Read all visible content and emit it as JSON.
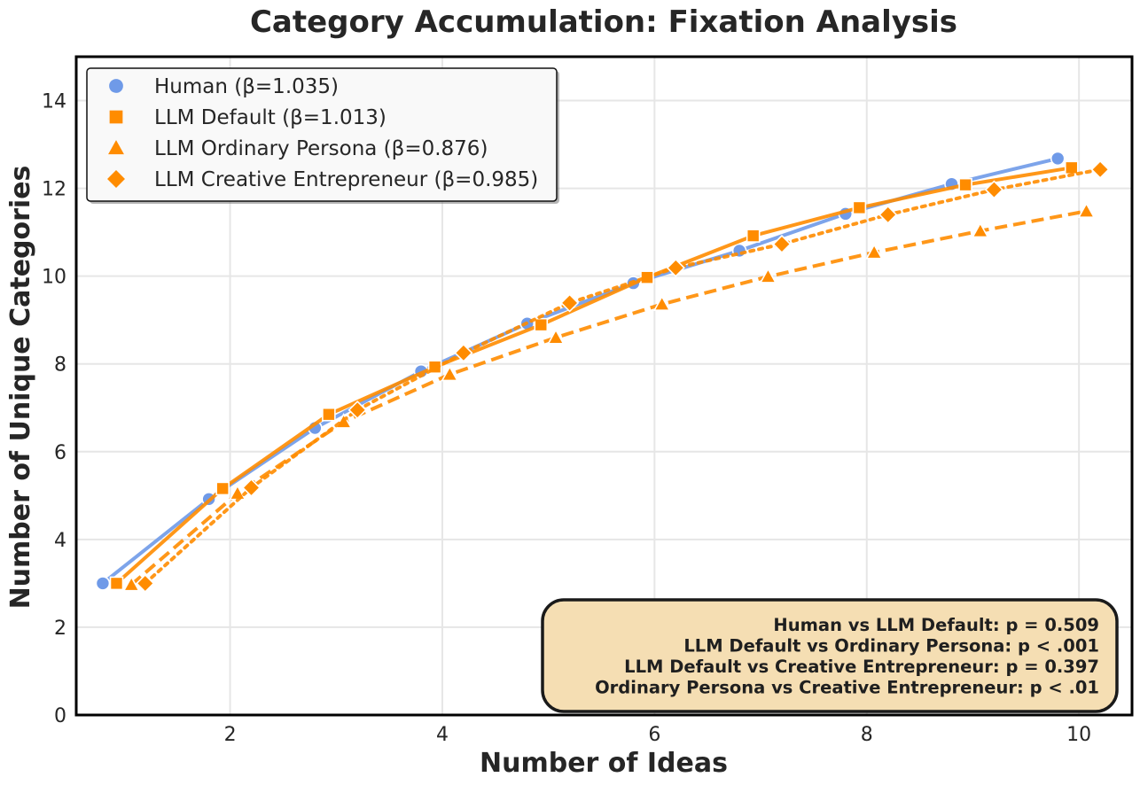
{
  "chart_data": {
    "type": "line",
    "title": "Category Accumulation: Fixation Analysis",
    "xlabel": "Number of Ideas",
    "ylabel": "Number of Unique Categories",
    "xlim": [
      0.55,
      10.5
    ],
    "ylim": [
      0,
      15
    ],
    "xticks": [
      2,
      4,
      6,
      8,
      10
    ],
    "yticks": [
      0,
      2,
      4,
      6,
      8,
      10,
      12,
      14
    ],
    "grid": true,
    "legend_position": "top-left",
    "x": [
      1,
      2,
      3,
      4,
      5,
      6,
      7,
      8,
      9,
      10
    ],
    "series": [
      {
        "name": "Human (β=1.035)",
        "marker": "circle",
        "line_style": "solid",
        "color": "#6f9ae8",
        "x_offset": -0.2,
        "values": [
          3.0,
          4.92,
          6.54,
          7.83,
          8.92,
          9.84,
          10.58,
          11.42,
          12.1,
          12.68
        ]
      },
      {
        "name": "LLM Default (β=1.013)",
        "marker": "square",
        "line_style": "solid",
        "color": "#ff8c00",
        "x_offset": -0.07,
        "values": [
          3.0,
          5.16,
          6.85,
          7.93,
          8.89,
          9.97,
          10.92,
          11.56,
          12.08,
          12.47
        ]
      },
      {
        "name": "LLM Ordinary Persona (β=0.876)",
        "marker": "triangle",
        "line_style": "dashed",
        "color": "#ff8c00",
        "x_offset": 0.07,
        "values": [
          2.97,
          5.05,
          6.68,
          7.76,
          8.6,
          9.36,
          9.99,
          10.54,
          11.03,
          11.48
        ]
      },
      {
        "name": "LLM Creative Entrepreneur (β=0.985)",
        "marker": "diamond",
        "line_style": "dotted",
        "color": "#ff8c00",
        "x_offset": 0.2,
        "values": [
          3.0,
          5.18,
          6.95,
          8.25,
          9.39,
          10.19,
          10.73,
          11.4,
          11.97,
          12.43
        ]
      }
    ],
    "annotation": {
      "position": "bottom-right",
      "lines": [
        "Human vs LLM Default: p = 0.509",
        "LLM Default vs Ordinary Persona: p < .001",
        "LLM Default vs Creative Entrepreneur: p = 0.397",
        "Ordinary Persona vs Creative Entrepreneur: p < .01"
      ],
      "background": "#f5deb3",
      "border": "#1a1a1a"
    }
  }
}
